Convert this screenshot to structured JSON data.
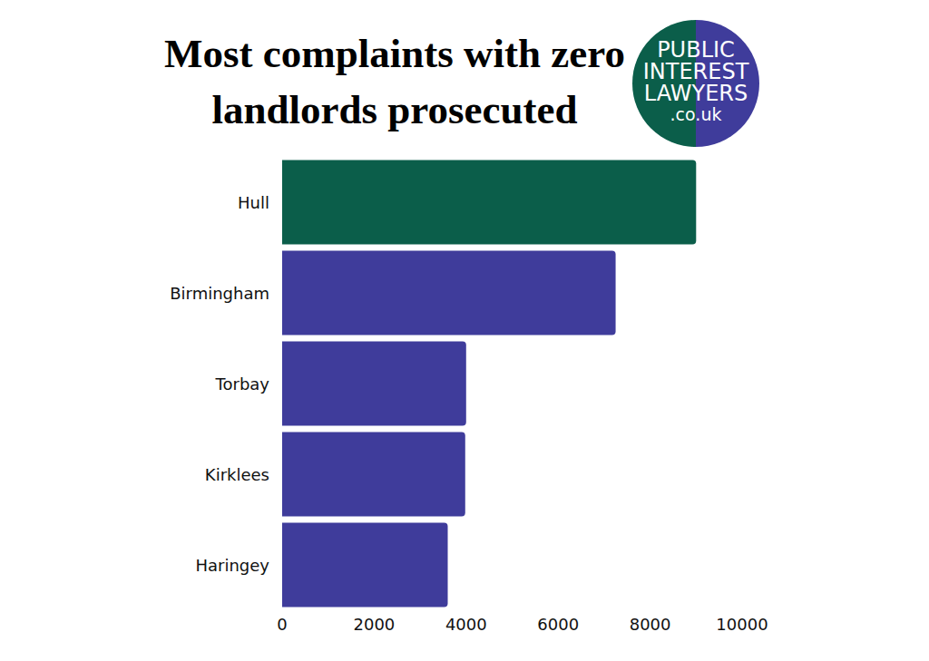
{
  "chart_data": {
    "type": "bar",
    "title": "Most complaints with zero landlords prosecuted",
    "annotations": [
      "PUBLIC",
      "INTEREST",
      "LAWYERS",
      ".co.uk"
    ],
    "orientation": "horizontal",
    "categories": [
      "Hull",
      "Birmingham",
      "Torbay",
      "Kirklees",
      "Haringey"
    ],
    "values": [
      9000,
      7250,
      4000,
      3980,
      3600
    ],
    "colors": [
      "#0b5e4a",
      "#3f3c9b",
      "#3f3c9b",
      "#3f3c9b",
      "#3f3c9b"
    ],
    "xlim": [
      0,
      10000
    ],
    "xticks": [
      0,
      2000,
      4000,
      6000,
      8000,
      10000
    ],
    "grid": false
  }
}
